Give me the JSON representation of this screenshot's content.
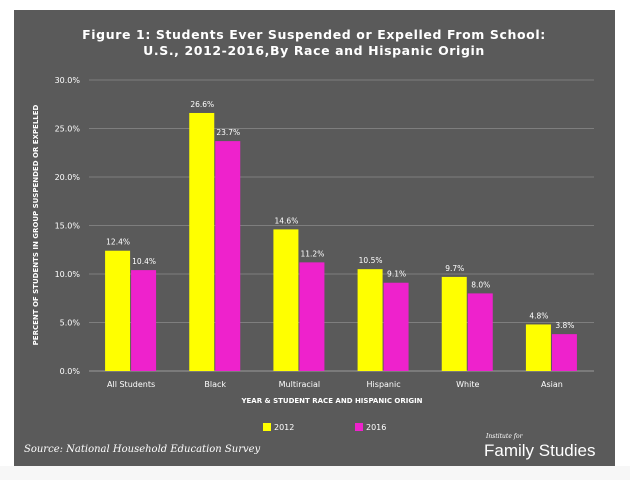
{
  "chart_data": {
    "type": "bar",
    "title_lines": [
      "Figure 1: Students Ever Suspended or Expelled From School:",
      "U.S., 2012-2016,By Race and Hispanic Origin"
    ],
    "categories": [
      "All Students",
      "Black",
      "Multiracial",
      "Hispanic",
      "White",
      "Asian"
    ],
    "series": [
      {
        "name": "2012",
        "color": "#ffff00",
        "values": [
          12.4,
          26.6,
          14.6,
          10.5,
          9.7,
          4.8
        ],
        "labels": [
          "12.4%",
          "26.6%",
          "14.6%",
          "10.5%",
          "9.7%",
          "4.8%"
        ]
      },
      {
        "name": "2016",
        "color": "#ee22cc",
        "values": [
          10.4,
          23.7,
          11.2,
          9.1,
          8.0,
          3.8
        ],
        "labels": [
          "10.4%",
          "23.7%",
          "11.2%",
          "9.1%",
          "8.0%",
          "3.8%"
        ]
      }
    ],
    "xlabel": "YEAR & STUDENT RACE AND HISPANIC ORIGIN",
    "ylabel": "PERCENT OF STUDENTS IN GROUP SUSPENDED OR EXPELLED",
    "ylim": [
      0,
      30
    ],
    "yticks": [
      0,
      5,
      10,
      15,
      20,
      25,
      30
    ],
    "ytick_labels": [
      "0.0%",
      "5.0%",
      "10.0%",
      "15.0%",
      "20.0%",
      "25.0%",
      "30.0%"
    ],
    "grid": true,
    "legend_position": "bottom"
  },
  "source": "Source: National Household Education Survey",
  "logo": {
    "top": "Institute for",
    "bottom": "Family Studies"
  }
}
